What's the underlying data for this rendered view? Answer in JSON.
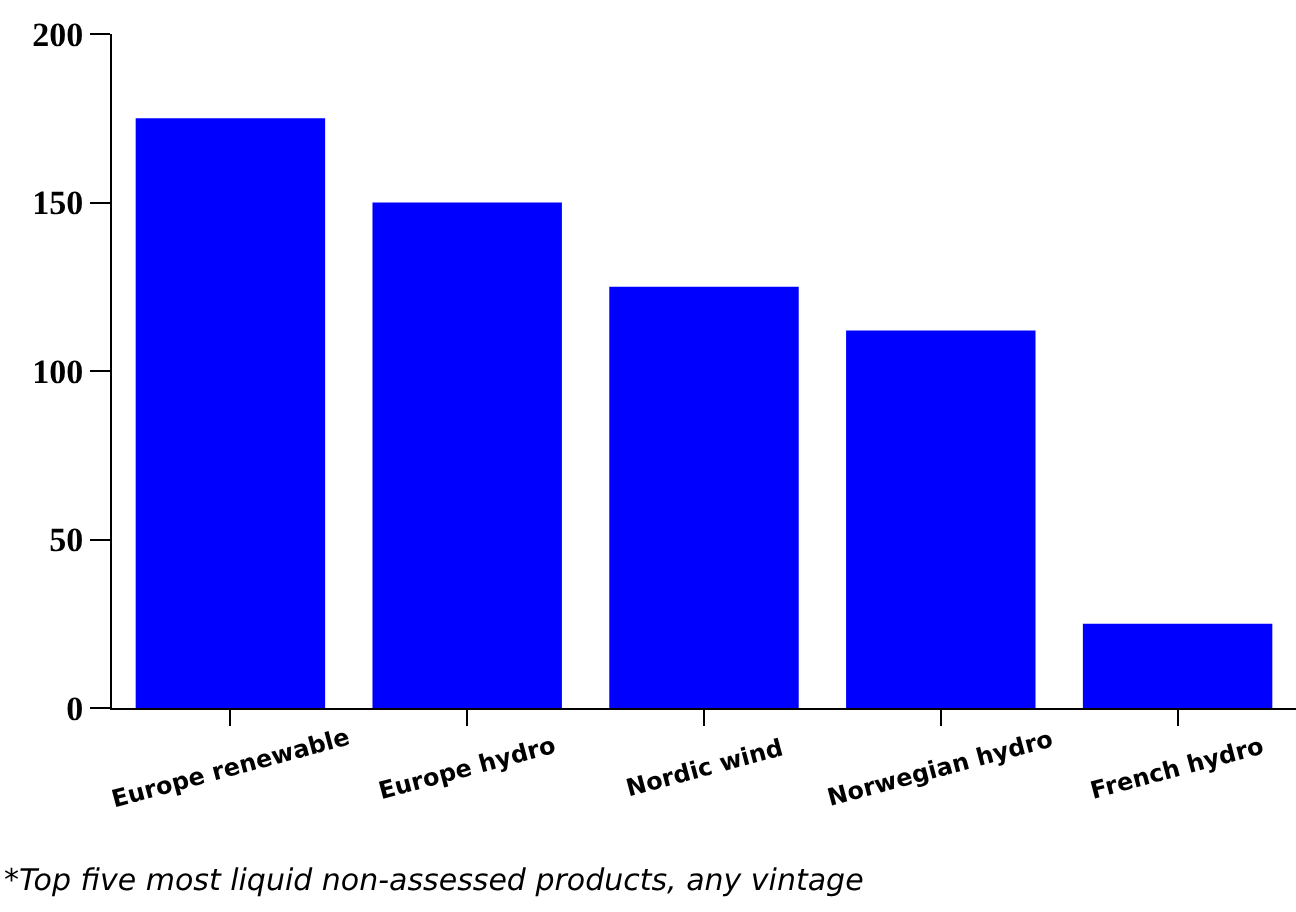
{
  "chart_data": {
    "type": "bar",
    "categories": [
      "Europe renewable",
      "Europe hydro",
      "Nordic wind",
      "Norwegian hydro",
      "French hydro"
    ],
    "values": [
      175,
      150,
      125,
      112,
      25
    ],
    "color": "#0000ff",
    "ylim": [
      0,
      200
    ],
    "yticks": [
      0,
      50,
      100,
      150,
      200
    ],
    "grid": false,
    "annotations": [
      "*Top five most liquid non-assessed products, any vintage"
    ]
  }
}
